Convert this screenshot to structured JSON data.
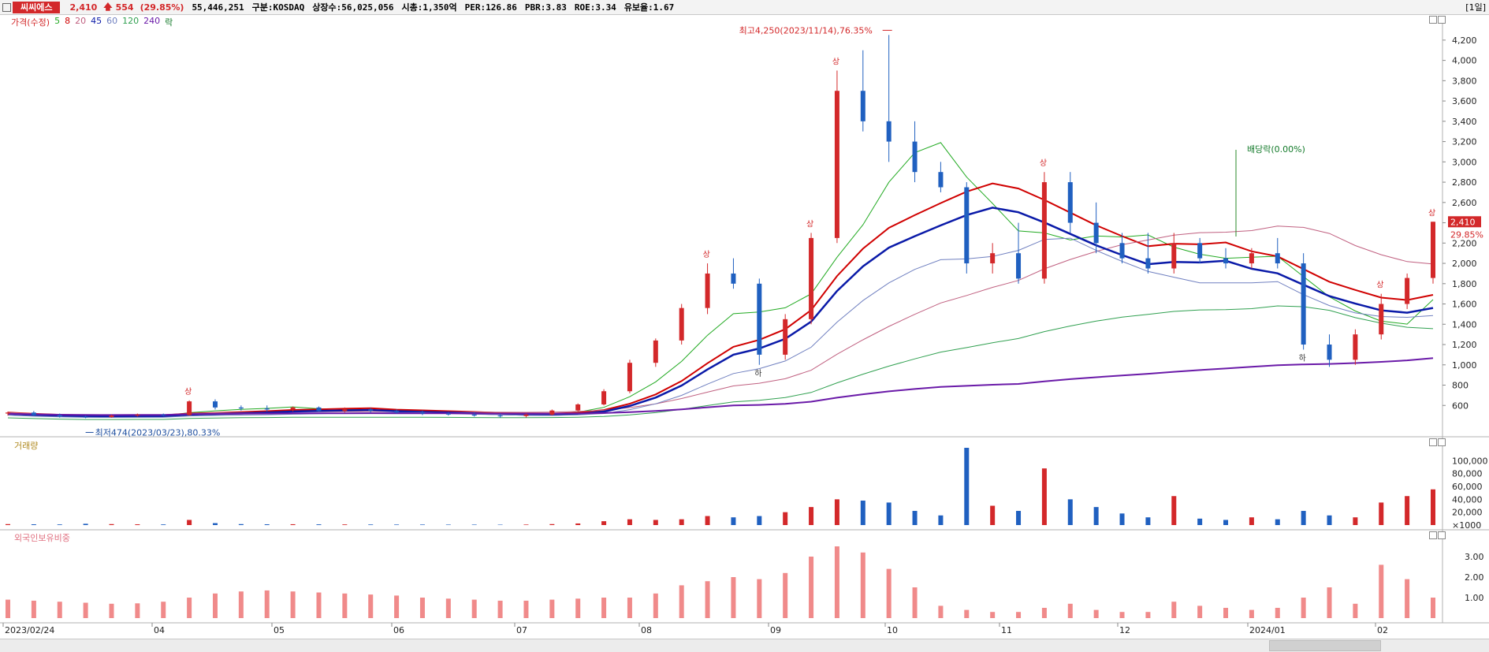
{
  "header": {
    "stock_name": "씨씨에스",
    "price": "2,410",
    "change": "554",
    "change_pct": "(29.85%)",
    "volume": "55,446,251",
    "market": "구분:KOSDAQ",
    "listed_shares": "상장수:56,025,056",
    "market_cap": "시총:1,350억",
    "per": "PER:126.86",
    "pbr": "PBR:3.83",
    "roe": "ROE:3.34",
    "float_ratio": "유보율:1.67",
    "period": "[1일]",
    "up_icon": "arrow-up-icon"
  },
  "legend": {
    "price_label": "가격(수정)",
    "ma5": "5",
    "ma8": "8",
    "ma20": "20",
    "ma45": "45",
    "ma60": "60",
    "ma120": "120",
    "ma240": "240",
    "drop_label": "락"
  },
  "volume_label": "거래량",
  "foreign_label": "외국인보유비중",
  "annotations": {
    "high": "최고4,250(2023/11/14),76.35%",
    "low": "최저474(2023/03/23),80.33%",
    "dividend": "배당락(0.00%)",
    "limit_up": "상",
    "limit_down": "하"
  },
  "current_price_tag": "2,410",
  "current_pct_tag": "29.85%",
  "colors": {
    "up": "#d3282a",
    "down": "#2060c0",
    "ma5": "#22aa22",
    "ma8": "#d00000",
    "ma20": "#c06080",
    "ma45": "#0a1aa8",
    "ma60": "#7080c0",
    "ma120": "#30a050",
    "ma240": "#6a1aa8"
  },
  "chart_data": [
    {
      "type": "candlestick",
      "title": "",
      "ylim": [
        400,
        4300
      ],
      "y_ticks": [
        "600",
        "800",
        "1,000",
        "1,200",
        "1,400",
        "1,600",
        "1,800",
        "2,000",
        "2,200",
        "2,400",
        "2,600",
        "2,800",
        "3,000",
        "3,200",
        "3,400",
        "3,600",
        "3,800",
        "4,000",
        "4,200"
      ],
      "x_ticks": [
        "2023/02/24",
        "04",
        "05",
        "06",
        "07",
        "08",
        "09",
        "10",
        "11",
        "12",
        "2024/01",
        "02"
      ],
      "high": {
        "value": 4250,
        "date": "2023/11/14"
      },
      "low": {
        "value": 474,
        "date": "2023/03/23"
      },
      "last": 2410,
      "candles": [
        [
          "2023/02/24",
          520,
          540,
          500,
          530
        ],
        [
          "03",
          530,
          545,
          495,
          505
        ],
        [
          "03",
          505,
          520,
          480,
          490
        ],
        [
          "03/23",
          490,
          500,
          474,
          485
        ],
        [
          "04",
          485,
          510,
          480,
          500
        ],
        [
          "04",
          500,
          520,
          490,
          510
        ],
        [
          "04",
          510,
          520,
          495,
          505
        ],
        [
          "05",
          505,
          650,
          500,
          640
        ],
        [
          "05",
          640,
          660,
          560,
          580
        ],
        [
          "05",
          580,
          600,
          550,
          570
        ],
        [
          "06",
          570,
          600,
          540,
          560
        ],
        [
          "06",
          560,
          590,
          540,
          580
        ],
        [
          "06",
          580,
          590,
          540,
          545
        ],
        [
          "06",
          545,
          580,
          530,
          560
        ],
        [
          "07",
          560,
          575,
          530,
          545
        ],
        [
          "07",
          545,
          560,
          520,
          530
        ],
        [
          "07",
          530,
          550,
          505,
          520
        ],
        [
          "08",
          520,
          535,
          500,
          510
        ],
        [
          "08",
          510,
          530,
          490,
          500
        ],
        [
          "08",
          500,
          520,
          480,
          495
        ],
        [
          "09",
          495,
          520,
          480,
          510
        ],
        [
          "09",
          510,
          560,
          500,
          550
        ],
        [
          "09",
          550,
          620,
          540,
          610
        ],
        [
          "09",
          610,
          760,
          600,
          740
        ],
        [
          "10",
          740,
          1050,
          720,
          1020
        ],
        [
          "10",
          1020,
          1260,
          980,
          1240
        ],
        [
          "10",
          1240,
          1600,
          1200,
          1560
        ],
        [
          "10",
          1560,
          2000,
          1500,
          1900
        ],
        [
          "10",
          1900,
          2050,
          1750,
          1800
        ],
        [
          "10",
          1800,
          1850,
          1000,
          1100
        ],
        [
          "11",
          1100,
          1500,
          1050,
          1450
        ],
        [
          "11",
          1450,
          2300,
          1400,
          2250
        ],
        [
          "11",
          2250,
          3900,
          2200,
          3700
        ],
        [
          "11",
          3700,
          4100,
          3300,
          3400
        ],
        [
          "11/14",
          3400,
          4250,
          3000,
          3200
        ],
        [
          "11",
          3200,
          3400,
          2800,
          2900
        ],
        [
          "11",
          2900,
          3000,
          2700,
          2750
        ],
        [
          "12",
          2750,
          2800,
          1900,
          2000
        ],
        [
          "12",
          2000,
          2200,
          1900,
          2100
        ],
        [
          "12",
          2100,
          2400,
          1800,
          1850
        ],
        [
          "12",
          1850,
          2900,
          1800,
          2800
        ],
        [
          "12",
          2800,
          2900,
          2300,
          2400
        ],
        [
          "12",
          2400,
          2600,
          2100,
          2200
        ],
        [
          "12",
          2200,
          2300,
          2000,
          2050
        ],
        [
          "2024/01",
          2050,
          2300,
          1900,
          1950
        ],
        [
          "01",
          1950,
          2300,
          1900,
          2200
        ],
        [
          "01",
          2200,
          2250,
          2000,
          2050
        ],
        [
          "01",
          2050,
          2150,
          1950,
          2000
        ],
        [
          "01",
          2000,
          2150,
          1950,
          2100
        ],
        [
          "01",
          2100,
          2250,
          1950,
          2000
        ],
        [
          "02",
          2000,
          2100,
          1150,
          1200
        ],
        [
          "02",
          1200,
          1300,
          980,
          1050
        ],
        [
          "02",
          1050,
          1350,
          1000,
          1300
        ],
        [
          "02",
          1300,
          1700,
          1250,
          1600
        ],
        [
          "02",
          1600,
          1900,
          1550,
          1856
        ],
        [
          "02",
          1856,
          2410,
          1800,
          2410
        ]
      ]
    },
    {
      "type": "bar",
      "title": "",
      "ylim": [
        0,
        120000
      ],
      "y_ticks": [
        "100,000",
        "80,000",
        "60,000",
        "40,000",
        "20,000",
        "×1000"
      ],
      "values": [
        1500,
        1200,
        1000,
        2000,
        1500,
        1200,
        1000,
        8000,
        3000,
        1500,
        1200,
        1300,
        1100,
        1000,
        900,
        800,
        800,
        700,
        700,
        600,
        800,
        1500,
        2500,
        6000,
        9000,
        8000,
        9000,
        14000,
        12000,
        14000,
        20000,
        28000,
        40000,
        38000,
        35000,
        22000,
        15000,
        120000,
        30000,
        22000,
        88000,
        40000,
        28000,
        18000,
        12000,
        45000,
        10000,
        8000,
        12000,
        9000,
        22000,
        15000,
        12000,
        35000,
        45000,
        55446
      ]
    },
    {
      "type": "bar",
      "title": "",
      "ylim": [
        0,
        4
      ],
      "y_ticks": [
        "3.00",
        "2.00",
        "1.00"
      ],
      "values": [
        0.9,
        0.85,
        0.8,
        0.75,
        0.7,
        0.72,
        0.8,
        1.0,
        1.2,
        1.3,
        1.35,
        1.3,
        1.25,
        1.2,
        1.15,
        1.1,
        1.0,
        0.95,
        0.9,
        0.85,
        0.85,
        0.9,
        0.95,
        1.0,
        1.0,
        1.2,
        1.6,
        1.8,
        2.0,
        1.9,
        2.2,
        3.0,
        3.5,
        3.2,
        2.4,
        1.5,
        0.6,
        0.4,
        0.3,
        0.3,
        0.5,
        0.7,
        0.4,
        0.3,
        0.3,
        0.8,
        0.6,
        0.5,
        0.4,
        0.5,
        1.0,
        1.5,
        0.7,
        2.6,
        1.9,
        1.0
      ]
    }
  ]
}
